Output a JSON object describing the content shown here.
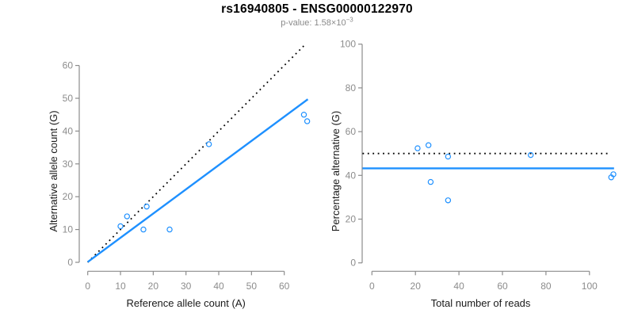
{
  "header": {
    "title": "rs16940805 - ENSG00000122970",
    "pvalue_label": "p-value: ",
    "pvalue_base": "1.58×10",
    "pvalue_exponent": "−3"
  },
  "style": {
    "background": "#FFFFFF",
    "axis_color": "#8C8C8C",
    "tick_label_color": "#8C8C8C",
    "axis_title_color": "#1A1A1A",
    "title_color": "#000000",
    "subtitle_color": "#8A8A8A",
    "accent_blue": "#1E90FF",
    "identity_black": "#000000"
  },
  "chart_data": [
    {
      "type": "scatter",
      "xlabel": "Reference allele count (A)",
      "ylabel": "Alternative allele count (G)",
      "xlim": [
        -2.6,
        69.9
      ],
      "ylim": [
        -2.6,
        66.6
      ],
      "xticks": [
        0,
        10,
        20,
        30,
        40,
        50,
        60
      ],
      "yticks": [
        0,
        10,
        20,
        30,
        40,
        50,
        60
      ],
      "grid": false,
      "marker": "open-circle",
      "marker_color": "#1E90FF",
      "points": [
        [
          10,
          11
        ],
        [
          12,
          14
        ],
        [
          17,
          10
        ],
        [
          18,
          17
        ],
        [
          25,
          10
        ],
        [
          37,
          36
        ],
        [
          66,
          45
        ],
        [
          67,
          43
        ]
      ],
      "lines": [
        {
          "name": "identity",
          "style": "dotted",
          "color": "#000000",
          "width": 1.8,
          "from": [
            0,
            0
          ],
          "to": [
            66.6,
            66.6
          ]
        },
        {
          "name": "fit",
          "style": "solid",
          "color": "#1E90FF",
          "width": 2.4,
          "from": [
            0,
            0.1
          ],
          "to": [
            67.2,
            49.7
          ]
        }
      ]
    },
    {
      "type": "scatter",
      "xlabel": "Total number of reads",
      "ylabel": "Percentage alternative (G)",
      "xlim": [
        -4.5,
        111.5
      ],
      "ylim": [
        0,
        100
      ],
      "xticks": [
        0,
        20,
        40,
        60,
        80,
        100
      ],
      "yticks": [
        0,
        20,
        40,
        60,
        80,
        100
      ],
      "grid": false,
      "marker": "open-circle",
      "marker_color": "#1E90FF",
      "points": [
        [
          21,
          52.4
        ],
        [
          26,
          53.8
        ],
        [
          27,
          37
        ],
        [
          35,
          48.6
        ],
        [
          35,
          28.6
        ],
        [
          73,
          49.3
        ],
        [
          110,
          39.1
        ],
        [
          111,
          40.5
        ]
      ],
      "lines": [
        {
          "name": "expected-50pct",
          "style": "dotted",
          "color": "#000000",
          "width": 1.8,
          "from": [
            -4.3,
            50
          ],
          "to": [
            109.5,
            50
          ]
        },
        {
          "name": "fit",
          "style": "solid",
          "color": "#1E90FF",
          "width": 2.4,
          "from": [
            -4.3,
            43.2
          ],
          "to": [
            111.3,
            43.2
          ]
        }
      ]
    }
  ]
}
